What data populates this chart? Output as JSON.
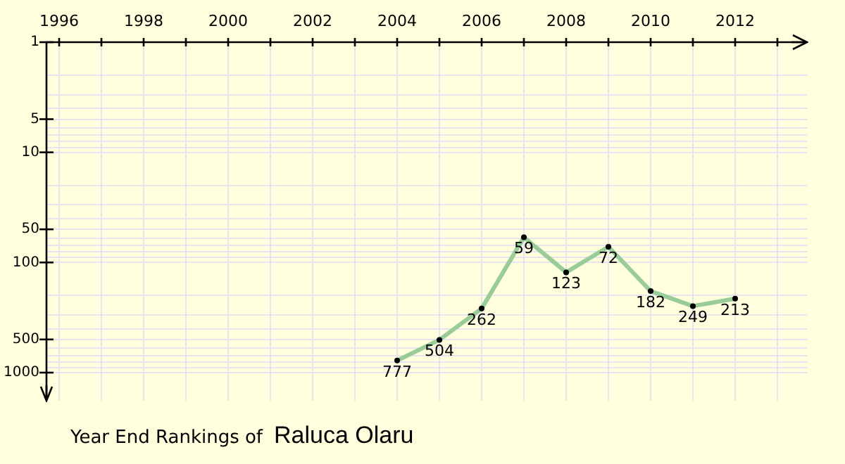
{
  "chart_data": {
    "type": "line",
    "title": "Year End Rankings of",
    "subtitle": "Raluca Olaru",
    "x": [
      2004,
      2005,
      2006,
      2007,
      2008,
      2009,
      2010,
      2011,
      2012
    ],
    "series": [
      {
        "color": "#99cc99",
        "values": [
          777,
          504,
          262,
          59,
          123,
          72,
          182,
          249,
          213
        ]
      }
    ],
    "xlim": [
      1995.7,
      2013.7
    ],
    "xticks": [
      1996,
      {
        "value": 1997,
        "label": null
      },
      1998,
      {
        "value": 1999,
        "label": null
      },
      2000,
      {
        "value": 2001,
        "label": null
      },
      2002,
      {
        "value": 2003,
        "label": null
      },
      2004,
      {
        "value": 2005,
        "label": null
      },
      2006,
      {
        "value": 2007,
        "label": null
      },
      2008,
      {
        "value": 2009,
        "label": null
      },
      2010,
      {
        "value": 2011,
        "label": null
      },
      2012,
      {
        "value": 2013,
        "label": null
      }
    ],
    "ylim": [
      1800,
      1
    ],
    "log": "y",
    "yticks": [
      1,
      {
        "value": 2,
        "label": null
      },
      {
        "value": 3,
        "label": null
      },
      {
        "value": 4,
        "label": null
      },
      5,
      {
        "value": 6,
        "label": null
      },
      {
        "value": 7,
        "label": null
      },
      {
        "value": 8,
        "label": null
      },
      {
        "value": 9,
        "label": null
      },
      10,
      {
        "value": 20,
        "label": null
      },
      {
        "value": 30,
        "label": null
      },
      {
        "value": 40,
        "label": null
      },
      50,
      {
        "value": 60,
        "label": null
      },
      {
        "value": 70,
        "label": null
      },
      {
        "value": 80,
        "label": null
      },
      {
        "value": 90,
        "label": null
      },
      100,
      {
        "value": 200,
        "label": null
      },
      {
        "value": 300,
        "label": null
      },
      {
        "value": 400,
        "label": null
      },
      500,
      {
        "value": 600,
        "label": null
      },
      {
        "value": 700,
        "label": null
      },
      {
        "value": 800,
        "label": null
      },
      {
        "value": 900,
        "label": null
      },
      1000
    ],
    "grid": true,
    "marker": "circle",
    "data_labels": true,
    "legend": false
  }
}
